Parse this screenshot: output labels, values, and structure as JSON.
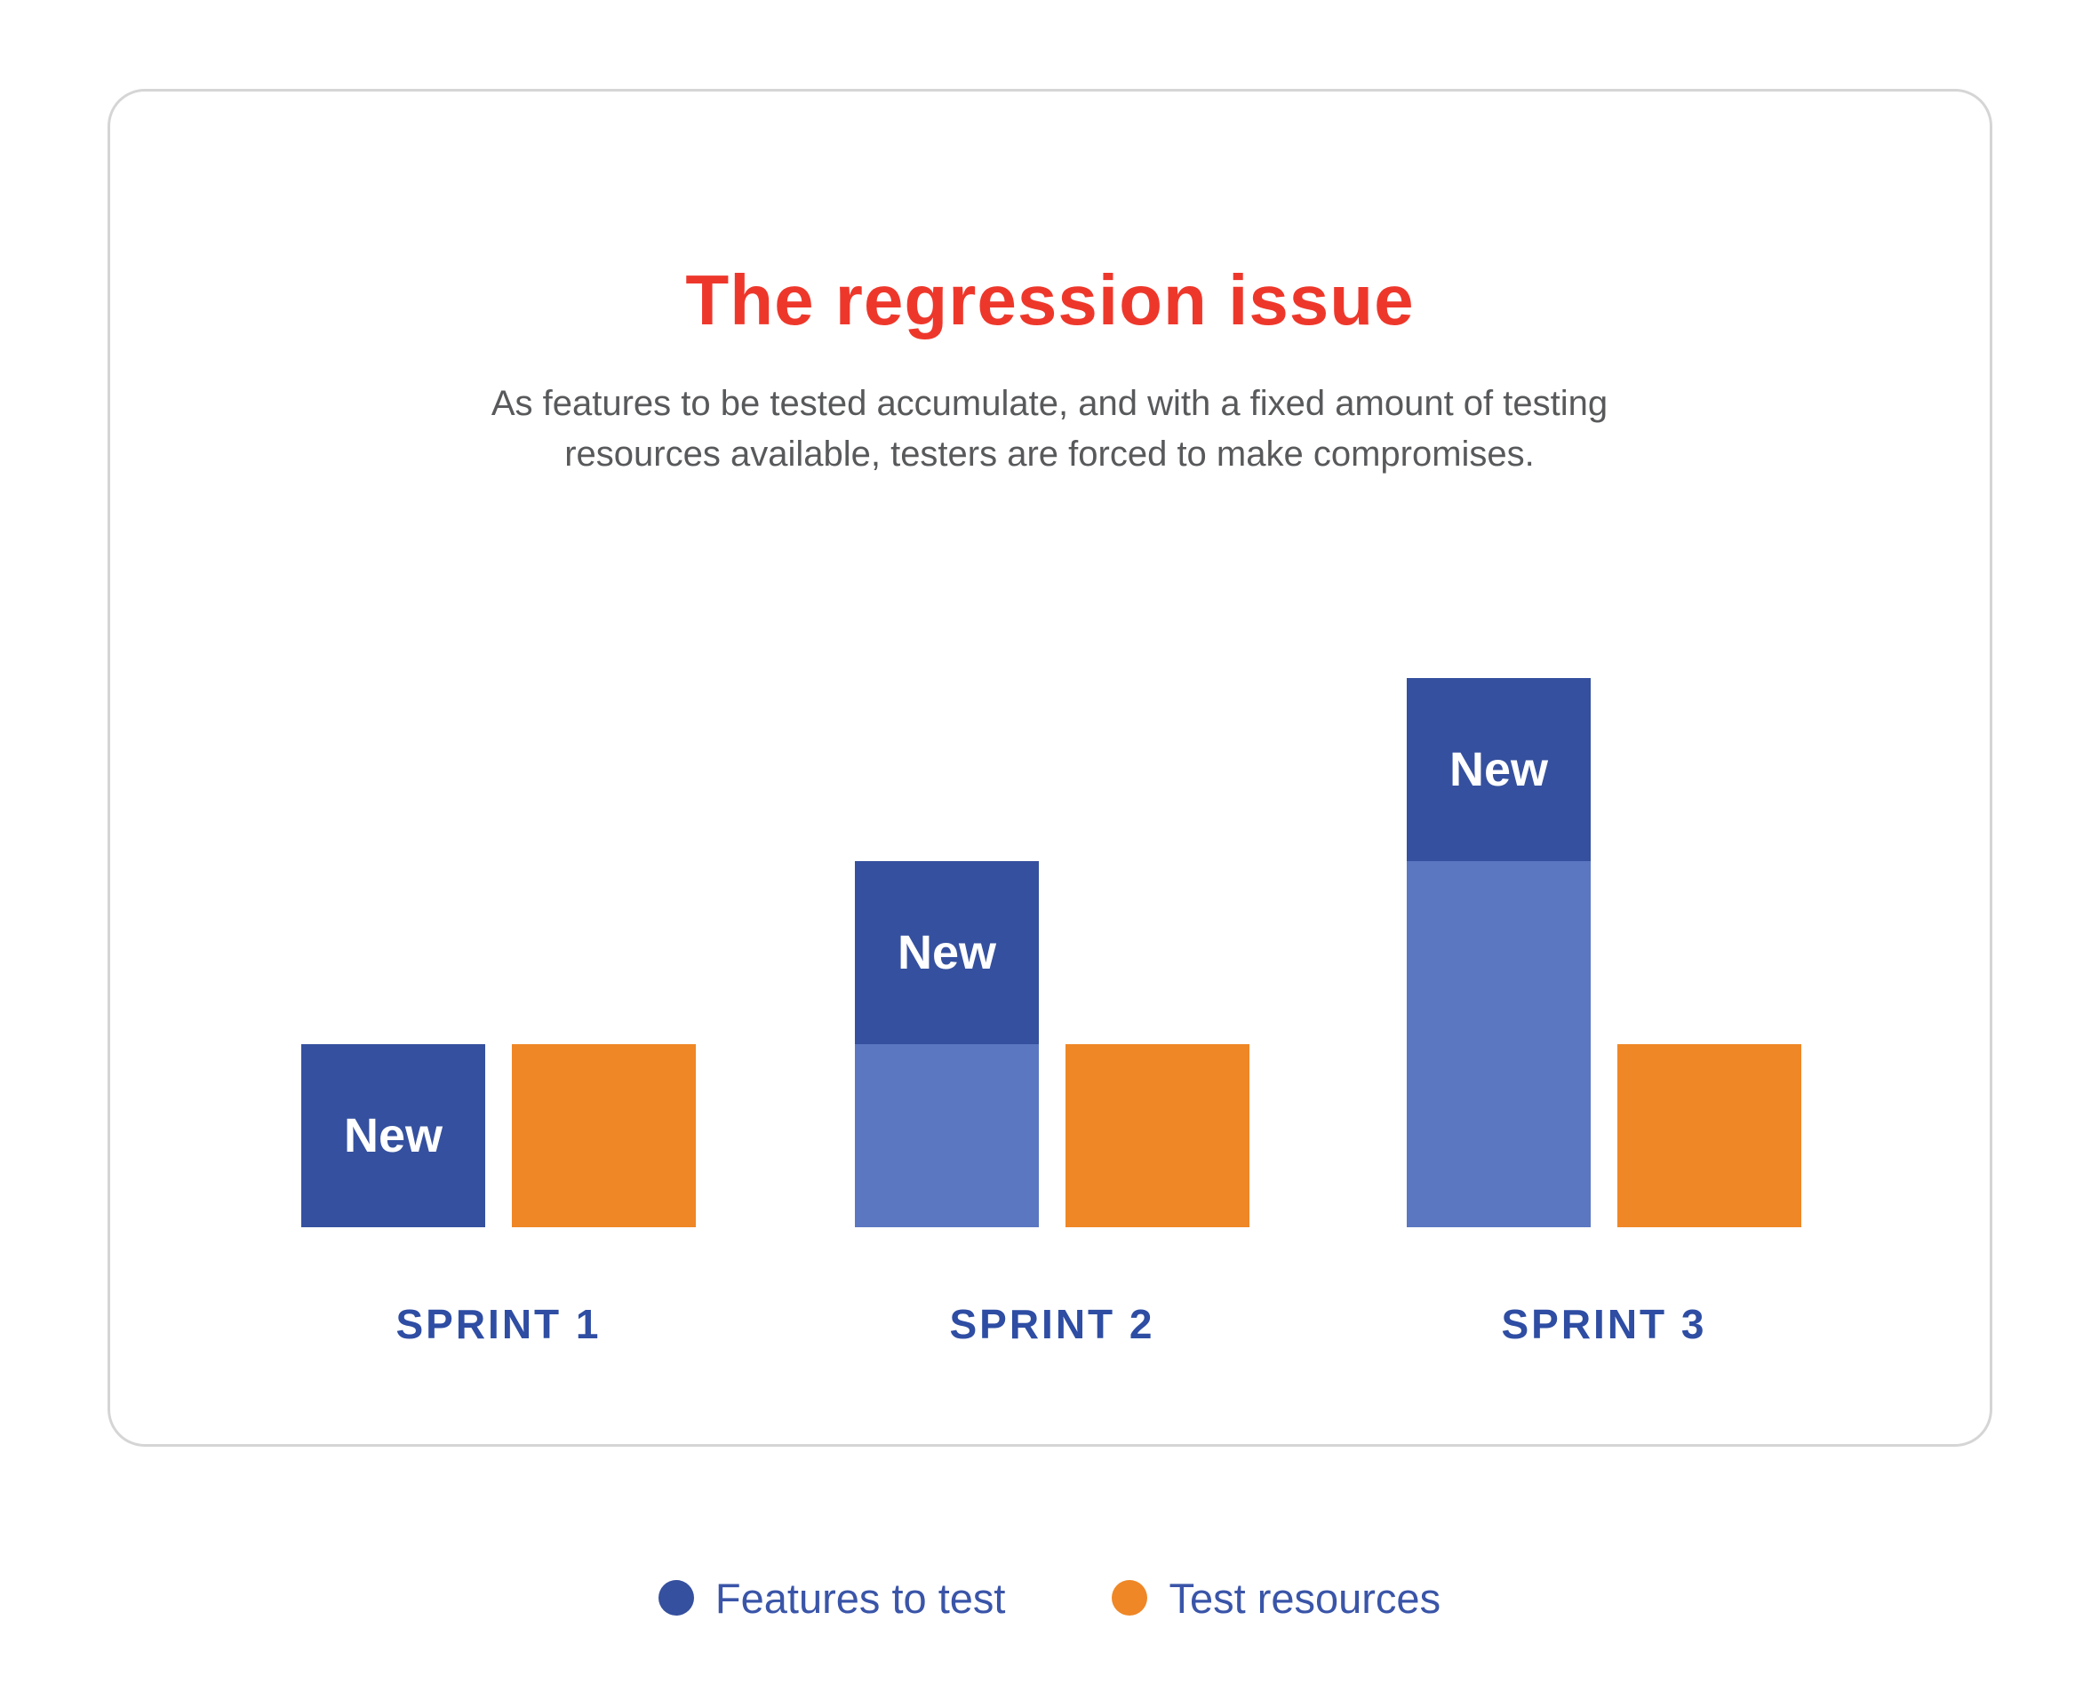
{
  "title": "The regression issue",
  "subtitle": {
    "line1": "As features to be tested accumulate, and with a fixed amount of testing",
    "line2": "resources available, testers are forced to make compromises."
  },
  "colors": {
    "title_red": "#EE372B",
    "subtitle_gray": "#58595B",
    "features_new_blue": "#35509E",
    "features_carryover_blue": "#5C77C1",
    "resources_orange": "#EF8726",
    "category_label_blue": "#2E4DA3",
    "legend_text_blue": "#3A55A8",
    "card_border_gray": "#D5D5D5",
    "bar_label_white": "#FFFFFF"
  },
  "chart_data": {
    "type": "bar",
    "subtype": "grouped-with-stacked-first-series",
    "categories": [
      "SPRINT 1",
      "SPRINT 2",
      "SPRINT 3"
    ],
    "value_unit": "relative units (1 unit = height of a Test resources bar)",
    "series": [
      {
        "name": "Features to test (carried over, light blue)",
        "values": [
          0,
          1,
          2
        ]
      },
      {
        "name": "Features to test (new, dark blue)",
        "values": [
          1,
          1,
          1
        ]
      },
      {
        "name": "Test resources (orange)",
        "values": [
          1,
          1,
          1
        ]
      }
    ],
    "bar_segment_label": "New",
    "legend": [
      {
        "label": "Features to test",
        "color": "#35509E"
      },
      {
        "label": "Test resources",
        "color": "#EF8726"
      }
    ],
    "legend_position": "bottom-center",
    "grid": false,
    "axes_visible": false
  }
}
